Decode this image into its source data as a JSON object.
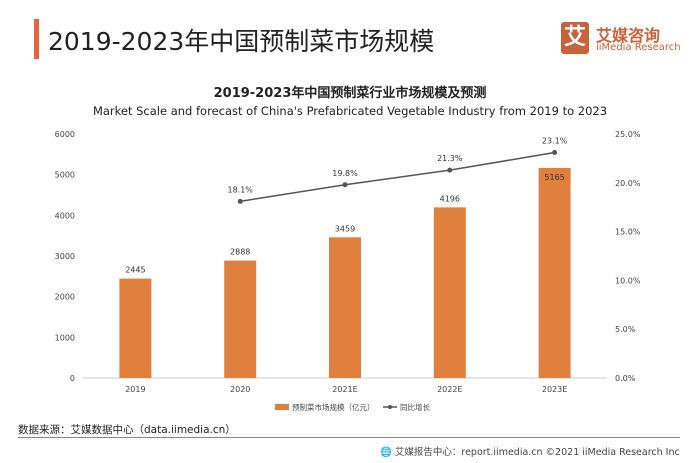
{
  "header": {
    "title": "2019-2023年中国预制菜市场规模",
    "logo_icon": "艾",
    "logo_cn": "艾媒咨询",
    "logo_en": "iiMedia Research"
  },
  "footer": {
    "source": "数据来源：艾媒数据中心（data.iimedia.cn）",
    "credit": "艾媒报告中心：report.iimedia.cn    ©2021  iiMedia Research  Inc",
    "credit_icon": "globe-icon"
  },
  "colors": {
    "bar": "#E0803F",
    "line": "#555555",
    "accent": "#E8643C",
    "logo": "#C9613B"
  },
  "chart_data": {
    "type": "bar",
    "title": "2019-2023年中国预制菜行业市场规模及预测",
    "subtitle": "Market Scale and forecast of China's Prefabricated Vegetable Industry from 2019 to 2023",
    "categories": [
      "2019",
      "2020",
      "2021E",
      "2022E",
      "2023E"
    ],
    "series": [
      {
        "name": "预制菜市场规模（亿元）",
        "type": "bar",
        "axis": "left",
        "values": [
          2445,
          2888,
          3459,
          4196,
          5165
        ]
      },
      {
        "name": "同比增长",
        "type": "line",
        "axis": "right",
        "values": [
          null,
          18.1,
          19.8,
          21.3,
          23.1
        ],
        "labels": [
          "",
          "18.1%",
          "19.8%",
          "21.3%",
          "23.1%"
        ]
      }
    ],
    "ylim": [
      0,
      6000
    ],
    "yticks": [
      "0",
      "1000",
      "2000",
      "3000",
      "4000",
      "5000",
      "6000"
    ],
    "y2lim": [
      0,
      25
    ],
    "y2ticks": [
      "0.0%",
      "5.0%",
      "10.0%",
      "15.0%",
      "20.0%",
      "25.0%"
    ],
    "grid": false,
    "legend": "bottom"
  }
}
